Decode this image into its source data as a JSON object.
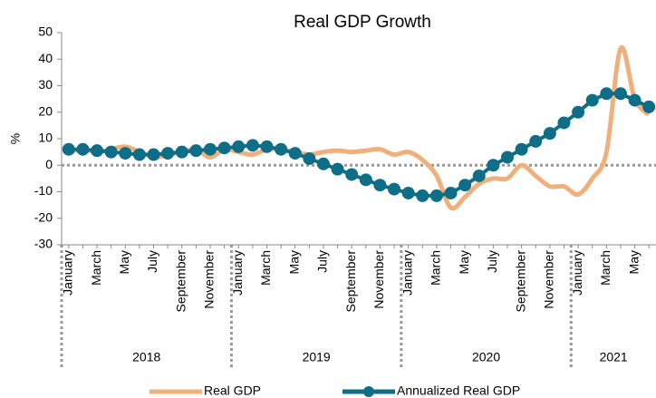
{
  "chart_data": {
    "type": "line",
    "title": "Real GDP Growth",
    "y_label": "%",
    "categories": [
      "January",
      null,
      "March",
      null,
      "May",
      null,
      "July",
      null,
      "September",
      null,
      "November",
      null,
      "January",
      null,
      "March",
      null,
      "May",
      null,
      "July",
      null,
      "September",
      null,
      "November",
      null,
      "January",
      null,
      "March",
      null,
      "May",
      null,
      "July",
      null,
      "September",
      null,
      "November",
      null,
      "January",
      null,
      "March",
      null,
      "May",
      null
    ],
    "years": [
      "2018",
      "2019",
      "2020",
      "2021"
    ],
    "series": [
      {
        "name": "Real GDP",
        "color": "#f0b07c",
        "smooth": true,
        "markers": false,
        "values": [
          5,
          6,
          5,
          6,
          7,
          5,
          3,
          4,
          5,
          6,
          3,
          6,
          5,
          4,
          6,
          6,
          5,
          4,
          5,
          5.5,
          5,
          5.5,
          6,
          4,
          5,
          2,
          -4,
          -16,
          -12,
          -7,
          -5,
          -5,
          0,
          -4,
          -8,
          -8,
          -11,
          -5,
          5,
          44,
          25,
          19
        ]
      },
      {
        "name": "Annualized Real GDP",
        "color": "#0f6e87",
        "smooth": false,
        "markers": true,
        "values": [
          6,
          6,
          5.5,
          5,
          4.5,
          4,
          4,
          4.5,
          5,
          5.5,
          6,
          6.5,
          7,
          7.5,
          7,
          6,
          4.5,
          2.5,
          0.5,
          -1.5,
          -3.5,
          -5.5,
          -7.5,
          -9,
          -10.5,
          -11.5,
          -11.5,
          -10.5,
          -7.5,
          -4,
          0,
          3,
          6,
          9,
          12,
          16,
          20,
          24.5,
          27,
          27,
          24.5,
          22
        ]
      }
    ],
    "ylim": [
      -30,
      50
    ],
    "yticks": [
      -30,
      -20,
      -10,
      0,
      10,
      20,
      30,
      40,
      50
    ],
    "zero_line": true
  }
}
